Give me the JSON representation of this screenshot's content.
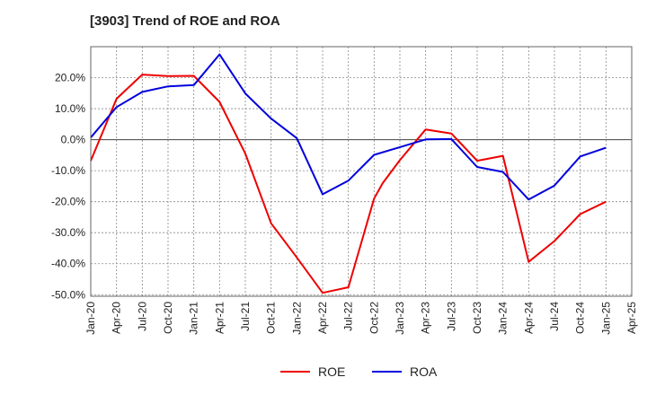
{
  "chart_data": {
    "type": "line",
    "title": "[3903]  Trend of ROE and ROA",
    "xlabel": "",
    "ylabel": "",
    "x_ticks": [
      "Jan-20",
      "Apr-20",
      "Jul-20",
      "Oct-20",
      "Jan-21",
      "Apr-21",
      "Jul-21",
      "Oct-21",
      "Jan-22",
      "Apr-22",
      "Jul-22",
      "Oct-22",
      "Jan-23",
      "Apr-23",
      "Jul-23",
      "Oct-23",
      "Jan-24",
      "Apr-24",
      "Jul-24",
      "Oct-24",
      "Jan-25",
      "Apr-25"
    ],
    "y_ticks": [
      "20.0%",
      "10.0%",
      "0.0%",
      "-10.0%",
      "-20.0%",
      "-30.0%",
      "-40.0%",
      "-50.0%"
    ],
    "y_tick_values": [
      20,
      10,
      0,
      -10,
      -20,
      -30,
      -40,
      -50
    ],
    "ylim": [
      -50.5,
      30
    ],
    "grid": "dotted",
    "legend_position": "bottom-center",
    "series": [
      {
        "name": "ROE",
        "color": "#ee0000",
        "x": [
          "Jan-20",
          "Apr-20",
          "Jul-20",
          "Oct-20",
          "Jan-21",
          "Apr-21",
          "Jul-21",
          "Oct-21",
          "Jan-22",
          "Apr-22",
          "Jul-22",
          "Oct-22",
          "Nov-22",
          "Jan-23",
          "Apr-23",
          "Jul-23",
          "Oct-23",
          "Jan-24",
          "Apr-24",
          "Jul-24",
          "Oct-24",
          "Jan-25"
        ],
        "values": [
          -6.8,
          13.2,
          21.0,
          20.5,
          20.6,
          12.2,
          -4.5,
          -27.0,
          -38.0,
          -49.4,
          -47.6,
          -19.0,
          -14.0,
          -6.6,
          3.3,
          2.0,
          -6.8,
          -5.2,
          -39.4,
          -32.7,
          -24.0,
          -20.0
        ]
      },
      {
        "name": "ROA",
        "color": "#0000dd",
        "x": [
          "Jan-20",
          "Apr-20",
          "Jul-20",
          "Oct-20",
          "Jan-21",
          "Apr-21",
          "Jul-21",
          "Oct-21",
          "Jan-22",
          "Apr-22",
          "Jul-22",
          "Oct-22",
          "Jan-23",
          "Apr-23",
          "Jul-23",
          "Oct-23",
          "Jan-24",
          "Apr-24",
          "Jul-24",
          "Oct-24",
          "Jan-25"
        ],
        "values": [
          0.7,
          10.5,
          15.4,
          17.2,
          17.6,
          27.5,
          14.9,
          6.8,
          0.5,
          -17.6,
          -13.2,
          -4.9,
          -2.4,
          0.1,
          0.2,
          -8.8,
          -10.4,
          -19.3,
          -14.8,
          -5.4,
          -2.6
        ]
      }
    ]
  }
}
